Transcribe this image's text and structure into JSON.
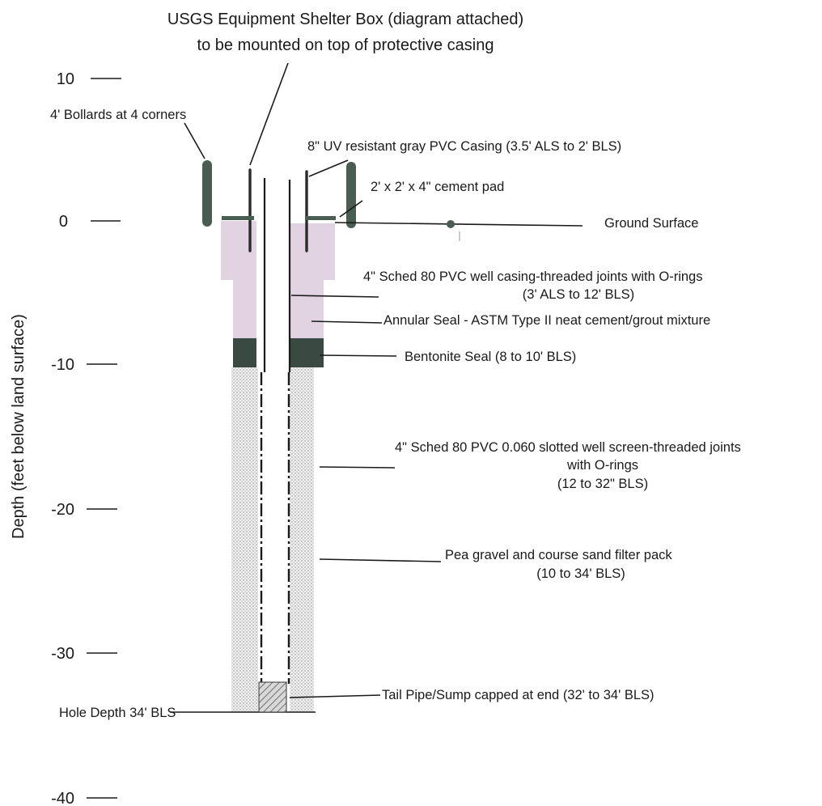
{
  "title": {
    "line1": "USGS Equipment Shelter Box (diagram attached)",
    "line2": "to be mounted on top of protective casing"
  },
  "y_axis_label": "Depth (feet below land surface)",
  "ticks": [
    "10",
    "0",
    "-10",
    "-20",
    "-30",
    "-40"
  ],
  "labels": {
    "bollards": "4' Bollards at 4 corners",
    "pvc_casing_8": "8\" UV resistant gray PVC Casing (3.5' ALS to 2' BLS)",
    "cement_pad": "2' x 2' x 4\" cement pad",
    "ground_surface": "Ground Surface",
    "well_casing_l1": "4\" Sched 80 PVC well casing-threaded joints with O-rings",
    "well_casing_l2": "(3' ALS to 12' BLS)",
    "annular_seal": "Annular Seal - ASTM Type II neat cement/grout mixture",
    "bentonite": "Bentonite Seal (8 to 10' BLS)",
    "screen_l1": "4\" Sched  80 PVC 0.060 slotted well screen-threaded joints",
    "screen_l2": "with O-rings",
    "screen_l3": "(12 to 32\" BLS)",
    "filter_l1": "Pea gravel and course sand filter pack",
    "filter_l2": "(10 to 34' BLS)",
    "tail_pipe": "Tail Pipe/Sump capped at end (32' to 34' BLS)",
    "hole_depth": "Hole Depth 34' BLS"
  },
  "colors": {
    "grout": "#e2d3e3",
    "bentonite": "#3a4a42",
    "bollard": "#4a5d52",
    "filter": "#e4e4e4",
    "line": "#1a1a1a"
  }
}
